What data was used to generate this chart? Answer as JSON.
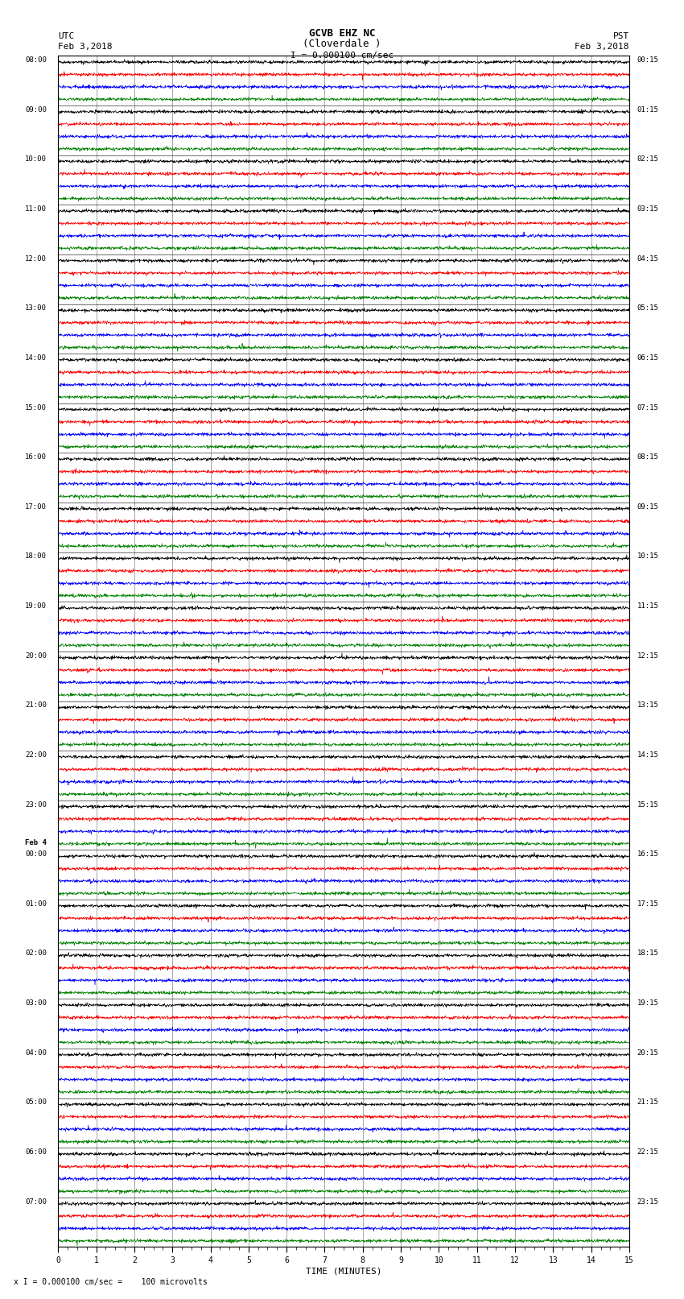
{
  "title_line1": "GCVB EHZ NC",
  "title_line2": "(Cloverdale )",
  "scale_label": "I = 0.000100 cm/sec",
  "left_header_line1": "UTC",
  "left_header_line2": "Feb 3,2018",
  "right_header_line1": "PST",
  "right_header_line2": "Feb 3,2018",
  "xlabel": "TIME (MINUTES)",
  "footer": "x I = 0.000100 cm/sec =    100 microvolts",
  "bg_color": "#ffffff",
  "trace_colors": [
    "black",
    "red",
    "blue",
    "green"
  ],
  "minutes_per_row": 15,
  "grid_color": "#808080",
  "left_label_times": [
    "08:00",
    "09:00",
    "10:00",
    "11:00",
    "12:00",
    "13:00",
    "14:00",
    "15:00",
    "16:00",
    "17:00",
    "18:00",
    "19:00",
    "20:00",
    "21:00",
    "22:00",
    "23:00",
    "Feb 4",
    "00:00",
    "01:00",
    "02:00",
    "03:00",
    "04:00",
    "05:00",
    "06:00",
    "07:00"
  ],
  "left_label_is_date": [
    false,
    false,
    false,
    false,
    false,
    false,
    false,
    false,
    false,
    false,
    false,
    false,
    false,
    false,
    false,
    false,
    true,
    false,
    false,
    false,
    false,
    false,
    false,
    false,
    false
  ],
  "right_label_times": [
    "00:15",
    "01:15",
    "02:15",
    "03:15",
    "04:15",
    "05:15",
    "06:15",
    "07:15",
    "08:15",
    "09:15",
    "10:15",
    "11:15",
    "12:15",
    "13:15",
    "14:15",
    "15:15",
    "16:15",
    "17:15",
    "18:15",
    "19:15",
    "20:15",
    "21:15",
    "22:15",
    "23:15"
  ],
  "noise_amp": 0.06,
  "trace_lw": 0.5
}
